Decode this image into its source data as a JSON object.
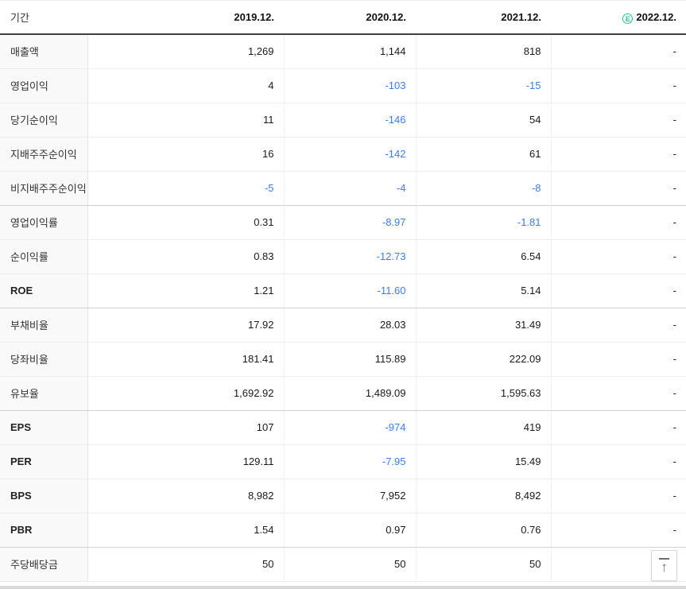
{
  "table": {
    "header": {
      "period_label": "기간",
      "years": [
        "2019.12.",
        "2020.12.",
        "2021.12."
      ],
      "estimate_column": {
        "badge": "E",
        "label": "2022.12.",
        "color": "#2bc08d"
      }
    },
    "colors": {
      "negative_value": "#3d7ee8",
      "value_text": "#1a1a1a"
    },
    "groups": [
      {
        "rows": [
          {
            "label": "매출액",
            "values": [
              "1,269",
              "1,144",
              "818",
              "-"
            ]
          },
          {
            "label": "영업이익",
            "values": [
              "4",
              "-103",
              "-15",
              "-"
            ]
          },
          {
            "label": "당기순이익",
            "values": [
              "11",
              "-146",
              "54",
              "-"
            ]
          },
          {
            "label": "지배주주순이익",
            "values": [
              "16",
              "-142",
              "61",
              "-"
            ]
          },
          {
            "label": "비지배주주순이익",
            "values": [
              "-5",
              "-4",
              "-8",
              "-"
            ]
          }
        ]
      },
      {
        "rows": [
          {
            "label": "영업이익률",
            "values": [
              "0.31",
              "-8.97",
              "-1.81",
              "-"
            ]
          },
          {
            "label": "순이익률",
            "values": [
              "0.83",
              "-12.73",
              "6.54",
              "-"
            ]
          },
          {
            "label": "ROE",
            "values": [
              "1.21",
              "-11.60",
              "5.14",
              "-"
            ]
          }
        ]
      },
      {
        "rows": [
          {
            "label": "부채비율",
            "values": [
              "17.92",
              "28.03",
              "31.49",
              "-"
            ]
          },
          {
            "label": "당좌비율",
            "values": [
              "181.41",
              "115.89",
              "222.09",
              "-"
            ]
          },
          {
            "label": "유보율",
            "values": [
              "1,692.92",
              "1,489.09",
              "1,595.63",
              "-"
            ]
          }
        ]
      },
      {
        "rows": [
          {
            "label": "EPS",
            "values": [
              "107",
              "-974",
              "419",
              "-"
            ]
          },
          {
            "label": "PER",
            "values": [
              "129.11",
              "-7.95",
              "15.49",
              "-"
            ]
          },
          {
            "label": "BPS",
            "values": [
              "8,982",
              "7,952",
              "8,492",
              "-"
            ]
          },
          {
            "label": "PBR",
            "values": [
              "1.54",
              "0.97",
              "0.76",
              "-"
            ]
          }
        ]
      },
      {
        "rows": [
          {
            "label": "주당배당금",
            "values": [
              "50",
              "50",
              "50",
              "-"
            ]
          }
        ]
      }
    ]
  },
  "scroll_top_button": {
    "tooltip": "맨위로"
  }
}
